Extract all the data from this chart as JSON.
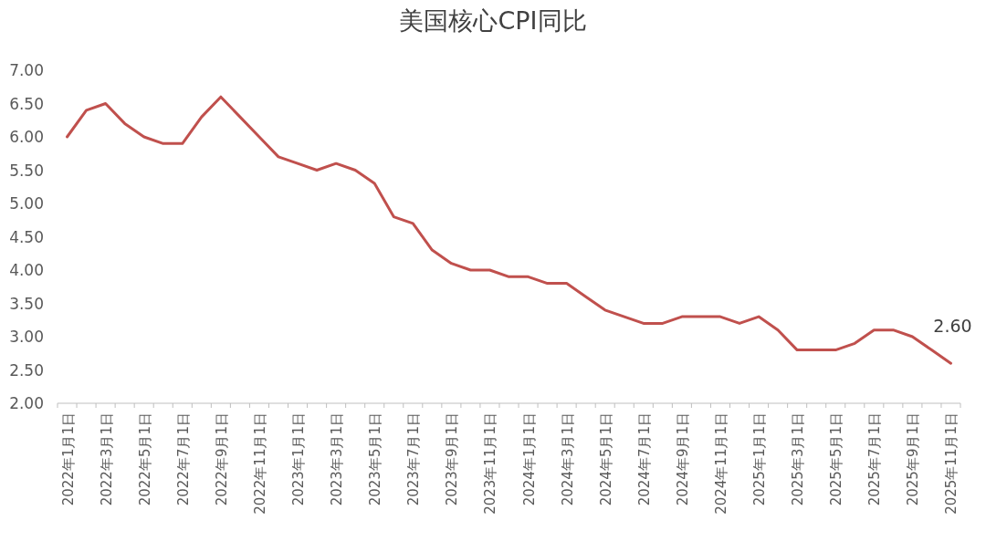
{
  "chart_data": {
    "type": "line",
    "title": "美国核心CPI同比",
    "categories": [
      "2022年1月1日",
      null,
      "2022年3月1日",
      null,
      "2022年5月1日",
      null,
      "2022年7月1日",
      null,
      "2022年9月1日",
      null,
      "2022年11月1日",
      null,
      "2023年1月1日",
      null,
      "2023年3月1日",
      null,
      "2023年5月1日",
      null,
      "2023年7月1日",
      null,
      "2023年9月1日",
      null,
      "2023年11月1日",
      null,
      "2024年1月1日",
      null,
      "2024年3月1日",
      null,
      "2024年5月1日",
      null,
      "2024年7月1日",
      null,
      "2024年9月1日",
      null,
      "2024年11月1日",
      null,
      "2025年1月1日",
      null,
      "2025年3月1日",
      null,
      "2025年5月1日",
      null,
      "2025年7月1日",
      null,
      "2025年9月1日",
      null,
      "2025年11月1日"
    ],
    "series": [
      {
        "color": "#c0504d",
        "values": [
          6.0,
          6.4,
          6.5,
          6.2,
          6.0,
          5.9,
          5.9,
          6.3,
          6.6,
          6.3,
          6.0,
          5.7,
          5.6,
          5.5,
          5.6,
          5.5,
          5.3,
          4.8,
          4.7,
          4.3,
          4.1,
          4.0,
          4.0,
          3.9,
          3.9,
          3.8,
          3.8,
          3.6,
          3.4,
          3.3,
          3.2,
          3.2,
          3.3,
          3.3,
          3.3,
          3.2,
          3.3,
          3.1,
          2.8,
          2.8,
          2.8,
          2.9,
          3.1,
          3.1,
          3.0,
          2.8,
          2.6
        ]
      }
    ],
    "ylim": [
      2,
      7
    ],
    "yticks": [
      {
        "value": 2,
        "label": "2.00"
      },
      {
        "value": 2.5,
        "label": "2.50"
      },
      {
        "value": 3,
        "label": "3.00"
      },
      {
        "value": 3.5,
        "label": "3.50"
      },
      {
        "value": 4,
        "label": "4.00"
      },
      {
        "value": 4.5,
        "label": "4.50"
      },
      {
        "value": 5,
        "label": "5.00"
      },
      {
        "value": 5.5,
        "label": "5.50"
      },
      {
        "value": 6,
        "label": "6.00"
      },
      {
        "value": 6.5,
        "label": "6.50"
      },
      {
        "value": 7,
        "label": "7.00"
      }
    ],
    "annotations": [
      {
        "text": "2.60",
        "x": "2025年11月1日",
        "y": 2.6
      }
    ],
    "line_style": "solid",
    "grid": false
  }
}
